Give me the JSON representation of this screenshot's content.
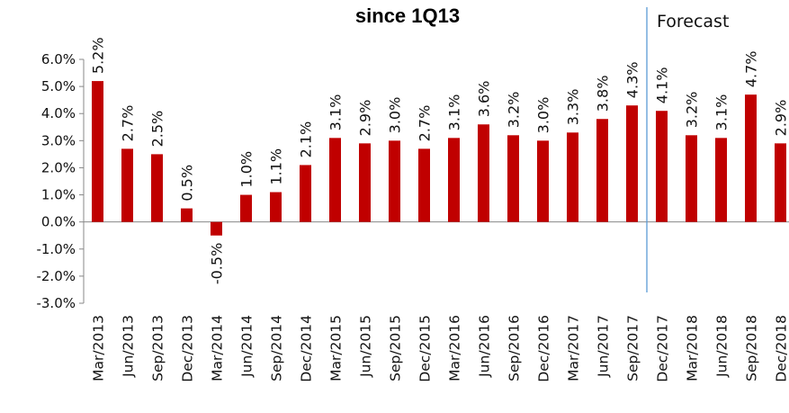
{
  "chart_data": {
    "type": "bar",
    "title": "since 1Q13",
    "xlabel": "",
    "ylabel": "",
    "ylim": [
      -3.0,
      6.0
    ],
    "yticks": [
      "6.0%",
      "5.0%",
      "4.0%",
      "3.0%",
      "2.0%",
      "1.0%",
      "0.0%",
      "-1.0%",
      "-2.0%",
      "-3.0%"
    ],
    "bar_color": "#c00000",
    "divider_color": "#5b9bd5",
    "annotation": "Forecast",
    "forecast_starts_at": "Dec/2017",
    "categories": [
      "Mar/2013",
      "Jun/2013",
      "Sep/2013",
      "Dec/2013",
      "Mar/2014",
      "Jun/2014",
      "Sep/2014",
      "Dec/2014",
      "Mar/2015",
      "Jun/2015",
      "Sep/2015",
      "Dec/2015",
      "Mar/2016",
      "Jun/2016",
      "Sep/2016",
      "Dec/2016",
      "Mar/2017",
      "Jun/2017",
      "Sep/2017",
      "Dec/2017",
      "Mar/2018",
      "Jun/2018",
      "Sep/2018",
      "Dec/2018"
    ],
    "values": [
      5.2,
      2.7,
      2.5,
      0.5,
      -0.5,
      1.0,
      1.1,
      2.1,
      3.1,
      2.9,
      3.0,
      2.7,
      3.1,
      3.6,
      3.2,
      3.0,
      3.3,
      3.8,
      4.3,
      4.1,
      3.2,
      3.1,
      4.7,
      2.9
    ],
    "data_labels": [
      "5.2%",
      "2.7%",
      "2.5%",
      "0.5%",
      "-0.5%",
      "1.0%",
      "1.1%",
      "2.1%",
      "3.1%",
      "2.9%",
      "3.0%",
      "2.7%",
      "3.1%",
      "3.6%",
      "3.2%",
      "3.0%",
      "3.3%",
      "3.8%",
      "4.3%",
      "4.1%",
      "3.2%",
      "3.1%",
      "4.7%",
      "2.9%"
    ]
  }
}
